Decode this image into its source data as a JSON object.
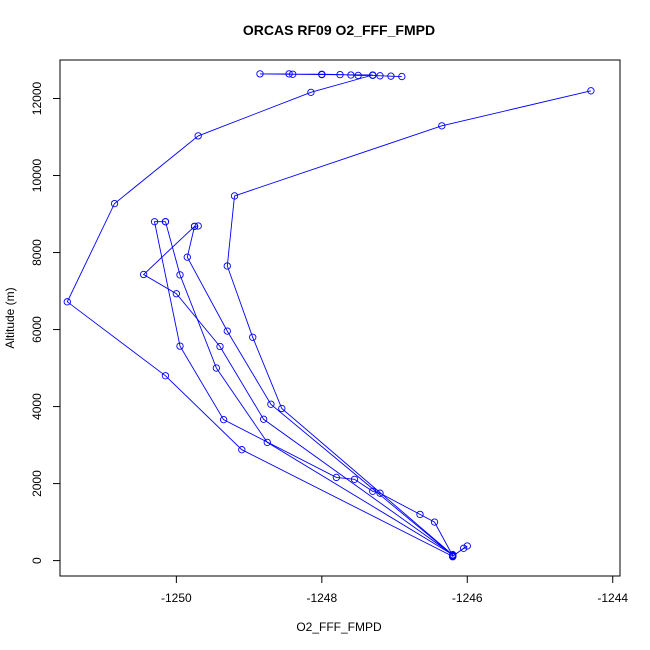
{
  "chart_data": {
    "type": "line",
    "title": "ORCAS RF09 O2_FFF_FMPD",
    "xlabel": "O2_FFF_FMPD",
    "ylabel": "Altitude (m)",
    "xlim": [
      -1251.6,
      -1243.9
    ],
    "ylim": [
      -400,
      13000
    ],
    "xticks": [
      -1250,
      -1248,
      -1246,
      -1244
    ],
    "yticks": [
      0,
      2000,
      4000,
      6000,
      8000,
      10000,
      12000
    ],
    "xtick_labels": [
      "-1250",
      "-1248",
      "-1246",
      "-1244"
    ],
    "ytick_labels": [
      "0",
      "2000",
      "4000",
      "6000",
      "8000",
      "10000",
      "12000"
    ],
    "color": "#0000ff",
    "marker": "open-circle",
    "grid": false,
    "series": [
      {
        "x": [
          -1246.9,
          -1247.05,
          -1247.2,
          -1247.3,
          -1247.5,
          -1247.6,
          -1247.75,
          -1248.0,
          -1248.4,
          -1248.45,
          -1248.85,
          -1248.0,
          -1247.3,
          -1248.15,
          -1249.7,
          -1250.85,
          -1251.5,
          -1250.15,
          -1249.1,
          -1246.2,
          -1246.05,
          -1246.0,
          -1246.2,
          -1246.2
        ],
        "y": [
          12570,
          12580,
          12590,
          12600,
          12600,
          12610,
          12620,
          12630,
          12630,
          12640,
          12640,
          12620,
          12610,
          12160,
          11030,
          9270,
          6720,
          4800,
          2880,
          110,
          320,
          380,
          120,
          100
        ]
      },
      {
        "x": [
          -1246.2,
          -1246.45,
          -1246.65,
          -1247.2,
          -1247.3,
          -1247.55,
          -1247.8,
          -1249.35,
          -1249.95,
          -1250.3,
          -1250.15
        ],
        "y": [
          130,
          1000,
          1200,
          1750,
          1800,
          2110,
          2160,
          3660,
          5570,
          8800,
          8800
        ]
      },
      {
        "x": [
          -1250.15,
          -1249.95,
          -1249.45,
          -1248.75,
          -1246.2
        ],
        "y": [
          8800,
          7420,
          5000,
          3070,
          150
        ]
      },
      {
        "x": [
          -1246.2,
          -1248.8,
          -1249.4,
          -1250.0,
          -1250.45,
          -1249.75,
          -1249.7,
          -1249.75,
          -1249.85,
          -1249.3,
          -1248.7,
          -1246.2
        ],
        "y": [
          150,
          3670,
          5560,
          6930,
          7430,
          8680,
          8690,
          8680,
          7880,
          5960,
          4060,
          140
        ]
      },
      {
        "x": [
          -1246.2,
          -1248.55,
          -1248.95,
          -1249.3,
          -1249.2,
          -1246.35,
          -1244.3
        ],
        "y": [
          150,
          3950,
          5800,
          7650,
          9470,
          11290,
          12200
        ]
      }
    ]
  }
}
